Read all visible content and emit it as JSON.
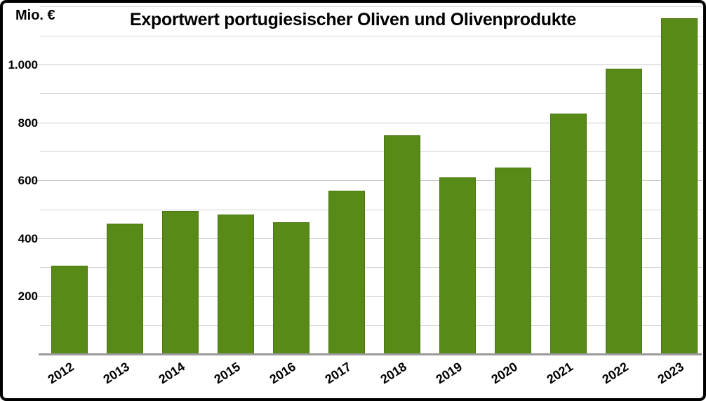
{
  "chart_data": {
    "type": "bar",
    "title": "Exportwert portugiesischer Oliven und Olivenprodukte",
    "ylabel": "Mio. €",
    "xlabel": "",
    "categories": [
      "2012",
      "2013",
      "2014",
      "2015",
      "2016",
      "2017",
      "2018",
      "2019",
      "2020",
      "2021",
      "2022",
      "2023"
    ],
    "values": [
      305,
      450,
      495,
      483,
      455,
      565,
      755,
      610,
      645,
      830,
      985,
      1160
    ],
    "ylim": [
      0,
      1213
    ],
    "yticks": [
      {
        "value": 200,
        "label": "200"
      },
      {
        "value": 400,
        "label": "400"
      },
      {
        "value": 600,
        "label": "600"
      },
      {
        "value": 800,
        "label": "800"
      },
      {
        "value": 1000,
        "label": "1.000"
      }
    ],
    "minor_gridline_step": 100,
    "minor_gridline_max": 1200,
    "grid": true,
    "legend_position": "none",
    "colors": {
      "bar": "#588a17",
      "bar_border": "#4a7410",
      "gridline": "#d4d4d4",
      "axis_line": "#9a9a9a",
      "text": "#000000",
      "background": "#ffffff",
      "frame_border": "#000000"
    }
  }
}
